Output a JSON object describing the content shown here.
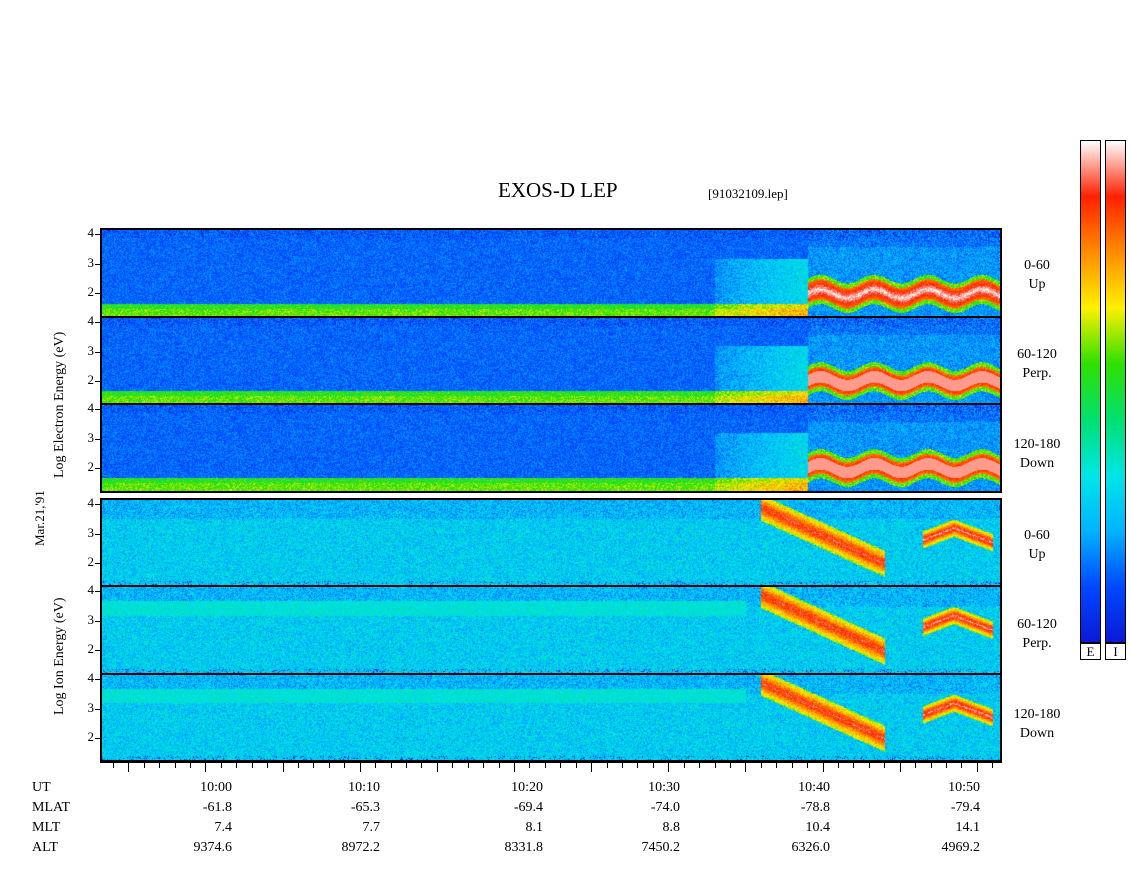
{
  "chart_data": {
    "type": "heatmap",
    "title": "EXOS-D LEP",
    "file_label": "[91032109.lep]",
    "date_label": "Mar.21,'91",
    "x_axis": {
      "ticks": [
        "10:00",
        "10:10",
        "10:20",
        "10:30",
        "10:40",
        "10:50"
      ],
      "rows": [
        {
          "label": "UT",
          "values": [
            "10:00",
            "10:10",
            "10:20",
            "10:30",
            "10:40",
            "10:50"
          ]
        },
        {
          "label": "MLAT",
          "values": [
            "-61.8",
            "-65.3",
            "-69.4",
            "-74.0",
            "-78.8",
            "-79.4"
          ]
        },
        {
          "label": "MLT",
          "values": [
            "7.4",
            "7.7",
            "8.1",
            "8.8",
            "10.4",
            "14.1"
          ]
        },
        {
          "label": "ALT",
          "values": [
            "9374.6",
            "8972.2",
            "8331.8",
            "7450.2",
            "6326.0",
            "4969.2"
          ]
        }
      ]
    },
    "y_tick_labels": [
      "2",
      "3",
      "4"
    ],
    "groups": [
      {
        "ylabel": "Log Electron Energy (eV)",
        "panels": [
          {
            "pitch": "0-60",
            "direction": "Up"
          },
          {
            "pitch": "60-120",
            "direction": "Perp."
          },
          {
            "pitch": "120-180",
            "direction": "Down"
          }
        ]
      },
      {
        "ylabel": "Log Ion Energy (eV)",
        "panels": [
          {
            "pitch": "0-60",
            "direction": "Up"
          },
          {
            "pitch": "60-120",
            "direction": "Perp."
          },
          {
            "pitch": "120-180",
            "direction": "Down"
          }
        ]
      }
    ],
    "colorbars": [
      {
        "label": "E"
      },
      {
        "label": "I"
      }
    ],
    "colormap": [
      "#0a1ad8",
      "#0048ff",
      "#00b4ff",
      "#00e6e6",
      "#00e070",
      "#30e000",
      "#fff000",
      "#ff8c00",
      "#ff2000",
      "#ffffff"
    ]
  }
}
